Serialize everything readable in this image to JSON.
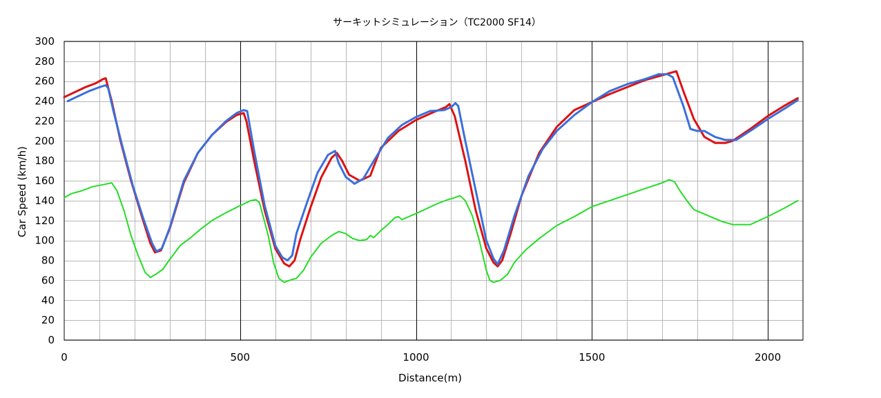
{
  "chart_data": {
    "type": "line",
    "title": "サーキットシミュレーション（TC2000 SF14）",
    "xlabel": "Distance(m)",
    "ylabel": "Car Speed (km/h)",
    "xlim": [
      0,
      2100
    ],
    "ylim": [
      0,
      300
    ],
    "x_ticks": [
      0,
      500,
      1000,
      1500,
      2000
    ],
    "x_tick_labels": [
      "0",
      "500",
      "1000",
      "1500",
      "2000"
    ],
    "x_minor_step": 100,
    "y_ticks": [
      0,
      20,
      40,
      60,
      80,
      100,
      120,
      140,
      160,
      180,
      200,
      220,
      240,
      260,
      280,
      300
    ],
    "y_tick_labels": [
      "0",
      "20",
      "40",
      "60",
      "80",
      "100",
      "120",
      "140",
      "160",
      "180",
      "200",
      "220",
      "240",
      "260",
      "280",
      "300"
    ],
    "grid": true,
    "legend": "none",
    "colors": {
      "red": "#dd1111",
      "blue": "#3a6fdc",
      "green": "#22dd22",
      "minor_grid": "#b8b8b8",
      "major_grid": "#000000"
    },
    "series": [
      {
        "color": "#dd1111",
        "x": [
          0,
          30,
          60,
          90,
          110,
          118,
          135,
          160,
          190,
          220,
          245,
          258,
          275,
          300,
          340,
          380,
          420,
          460,
          490,
          510,
          518,
          540,
          570,
          600,
          625,
          640,
          655,
          670,
          700,
          730,
          760,
          775,
          790,
          810,
          840,
          870,
          900,
          950,
          1000,
          1050,
          1085,
          1095,
          1110,
          1140,
          1170,
          1200,
          1220,
          1232,
          1245,
          1270,
          1300,
          1350,
          1400,
          1450,
          1500,
          1550,
          1600,
          1650,
          1700,
          1730,
          1740,
          1760,
          1790,
          1820,
          1850,
          1880,
          1900,
          1950,
          2000,
          2050,
          2085
        ],
        "values": [
          244,
          249,
          254,
          258,
          262,
          263,
          240,
          200,
          160,
          125,
          97,
          88,
          90,
          112,
          158,
          188,
          206,
          219,
          226,
          228,
          220,
          180,
          130,
          92,
          77,
          74,
          80,
          100,
          133,
          163,
          183,
          188,
          180,
          166,
          160,
          165,
          193,
          210,
          221,
          229,
          234,
          237,
          225,
          180,
          130,
          92,
          78,
          74,
          80,
          108,
          145,
          188,
          214,
          231,
          239,
          247,
          254,
          261,
          266,
          269,
          270,
          250,
          222,
          204,
          198,
          198,
          200,
          212,
          225,
          236,
          243
        ]
      },
      {
        "color": "#3a6fdc",
        "x": [
          10,
          40,
          70,
          100,
          118,
          125,
          140,
          165,
          195,
          225,
          250,
          262,
          278,
          300,
          340,
          380,
          420,
          460,
          490,
          510,
          520,
          540,
          570,
          600,
          620,
          635,
          648,
          660,
          690,
          720,
          750,
          770,
          780,
          800,
          825,
          850,
          880,
          920,
          960,
          1000,
          1040,
          1080,
          1100,
          1112,
          1120,
          1140,
          1170,
          1200,
          1220,
          1232,
          1250,
          1280,
          1320,
          1360,
          1400,
          1450,
          1500,
          1550,
          1600,
          1650,
          1690,
          1715,
          1730,
          1760,
          1780,
          1800,
          1820,
          1850,
          1880,
          1910,
          1950,
          2000,
          2050,
          2085
        ],
        "values": [
          240,
          245,
          250,
          254,
          256,
          253,
          230,
          195,
          155,
          122,
          97,
          89,
          92,
          113,
          160,
          188,
          206,
          220,
          228,
          231,
          230,
          190,
          135,
          95,
          83,
          80,
          85,
          107,
          138,
          168,
          186,
          190,
          178,
          164,
          157,
          162,
          180,
          203,
          216,
          224,
          230,
          231,
          234,
          238,
          235,
          200,
          150,
          100,
          82,
          76,
          90,
          125,
          165,
          192,
          210,
          226,
          239,
          250,
          257,
          262,
          267,
          267,
          264,
          235,
          212,
          210,
          210,
          204,
          201,
          201,
          210,
          222,
          233,
          241
        ]
      },
      {
        "color": "#22dd22",
        "x": [
          0,
          20,
          50,
          80,
          110,
          135,
          150,
          170,
          190,
          210,
          230,
          245,
          260,
          280,
          300,
          330,
          360,
          390,
          420,
          460,
          500,
          530,
          545,
          555,
          565,
          580,
          595,
          610,
          625,
          640,
          660,
          680,
          700,
          730,
          760,
          780,
          800,
          820,
          840,
          860,
          870,
          880,
          900,
          920,
          940,
          950,
          960,
          980,
          1000,
          1030,
          1060,
          1090,
          1110,
          1125,
          1140,
          1160,
          1180,
          1200,
          1210,
          1220,
          1240,
          1260,
          1280,
          1310,
          1350,
          1400,
          1450,
          1500,
          1550,
          1600,
          1650,
          1700,
          1720,
          1735,
          1750,
          1770,
          1790,
          1810,
          1830,
          1850,
          1870,
          1900,
          1950,
          2000,
          2050,
          2085
        ],
        "values": [
          143,
          147,
          150,
          154,
          156,
          158,
          150,
          130,
          105,
          85,
          68,
          63,
          66,
          71,
          81,
          95,
          103,
          112,
          120,
          128,
          135,
          140,
          141,
          138,
          125,
          105,
          78,
          62,
          58,
          60,
          62,
          70,
          83,
          97,
          105,
          109,
          107,
          102,
          100,
          101,
          105,
          103,
          110,
          116,
          123,
          124,
          121,
          124,
          127,
          132,
          137,
          141,
          143,
          145,
          140,
          125,
          100,
          70,
          60,
          58,
          60,
          66,
          78,
          90,
          102,
          115,
          124,
          134,
          140,
          146,
          152,
          158,
          161,
          159,
          150,
          140,
          131,
          128,
          125,
          122,
          119,
          116,
          116,
          124,
          133,
          140
        ]
      }
    ]
  }
}
